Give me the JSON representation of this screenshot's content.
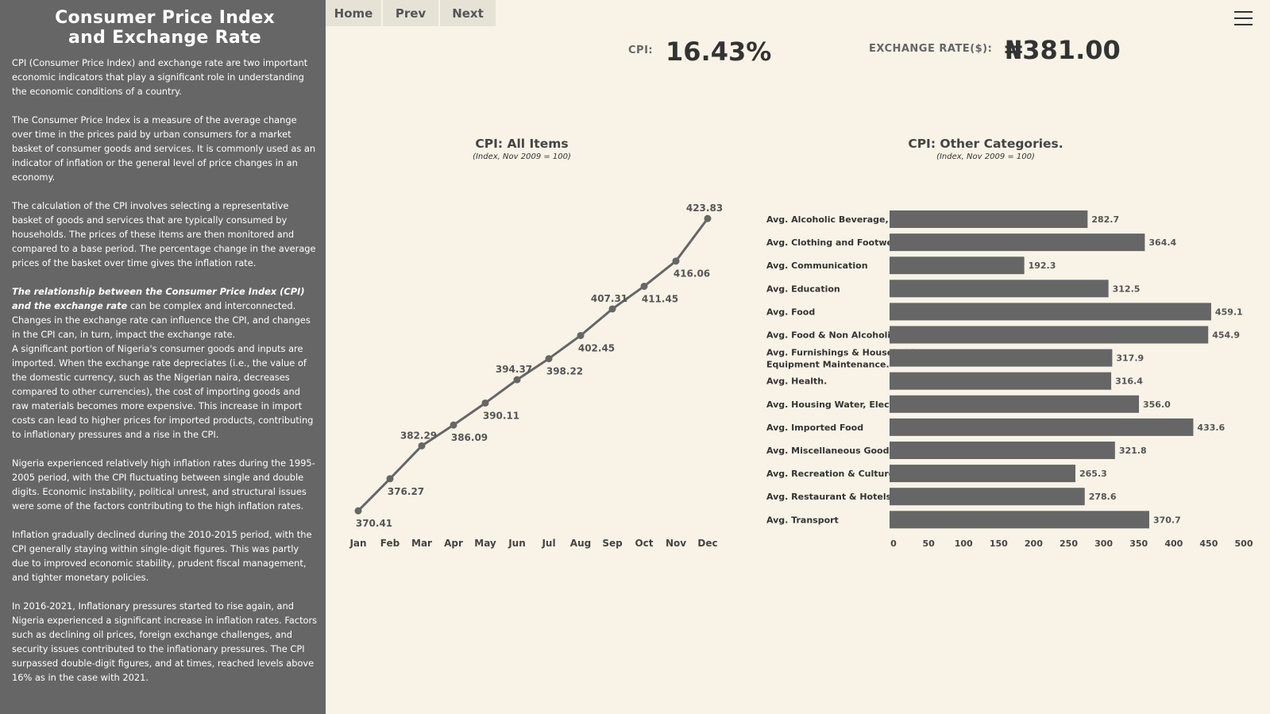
{
  "sidebar": {
    "title_line1": "Consumer Price Index",
    "title_line2": "and Exchange Rate",
    "p1": "CPI (Consumer Price Index) and exchange rate are two important economic indicators that play a significant role in understanding the economic conditions of a country.",
    "p2": "The Consumer Price Index is a measure of the average change over time in the prices paid by urban consumers for a market basket of consumer goods and services. It is commonly used as an indicator of inflation or the general level of price changes in an economy.",
    "p3": "The calculation of the CPI involves selecting a representative basket of goods and services that are typically consumed by households. The prices of these items are then monitored and compared to a base period. The percentage change in the average prices of the basket over time gives the inflation rate.",
    "p4_emph": "The relationship between the Consumer Price Index (CPI) and the exchange rate",
    "p4_rest": " can be complex and interconnected. Changes in the exchange rate can influence the CPI, and changes in the CPI can, in turn, impact the exchange rate.",
    "p5": "A significant portion of Nigeria's consumer goods and inputs are imported. When the exchange rate depreciates (i.e., the value of the domestic currency, such as the Nigerian naira, decreases compared to other currencies), the cost of importing goods and raw materials becomes more expensive. This increase in import costs can lead to higher prices for imported products, contributing to inflationary pressures and a rise in the CPI.",
    "p6": "Nigeria experienced relatively high inflation rates during the 1995-2005  period, with the CPI fluctuating between single and double digits. Economic instability, political unrest, and structural issues were some of the factors contributing to the high inflation rates.",
    "p7": "Inflation gradually declined during the 2010-2015 period, with the CPI generally staying within single-digit figures. This was partly due to improved economic stability, prudent fiscal management, and tighter monetary policies.",
    "p8": "In 2016-2021, Inflationary pressures started to rise again, and Nigeria experienced a significant increase in inflation rates. Factors such as declining oil prices, foreign exchange challenges, and security issues contributed to the inflationary pressures. The CPI surpassed double-digit figures, and at times, reached levels above 16% as in the case with 2021."
  },
  "nav": {
    "home": "Home",
    "prev": "Prev",
    "next": "Next"
  },
  "kpi": {
    "cpi_label": "CPI:",
    "cpi_value": "16.43%",
    "fx_label": "EXCHANGE RATE($):",
    "fx_value": "₦381.00"
  },
  "icons": {
    "menu": "hamburger-menu-icon"
  },
  "colors": {
    "sidebar": "#666666",
    "background": "#f8f3e6",
    "series": "#666666"
  },
  "chart_data": [
    {
      "type": "line",
      "title": "CPI: All Items",
      "subtitle": "(Index, Nov 2009 = 100)",
      "x": [
        "Jan",
        "Feb",
        "Mar",
        "Apr",
        "May",
        "Jun",
        "Jul",
        "Aug",
        "Sep",
        "Oct",
        "Nov",
        "Dec"
      ],
      "values": [
        370.41,
        376.27,
        382.29,
        386.09,
        390.11,
        394.37,
        398.22,
        402.45,
        407.31,
        411.45,
        416.06,
        423.83
      ],
      "labels": [
        "370.41",
        "376.27",
        "382.29",
        "386.09",
        "390.11",
        "394.37",
        "398.22",
        "402.45",
        "407.31",
        "411.45",
        "416.06",
        "423.83"
      ],
      "label_side": [
        "below",
        "below",
        "above",
        "below",
        "below",
        "above",
        "below",
        "below",
        "above",
        "below",
        "below",
        "above"
      ],
      "ylim": [
        370,
        424
      ],
      "grid": false
    },
    {
      "type": "bar",
      "orientation": "horizontal",
      "title": "CPI: Other Categories.",
      "subtitle": "(Index, Nov 2009 = 100)",
      "categories": [
        [
          "Avg. Alcoholic Beverage,  To.."
        ],
        [
          "Avg. Clothing and Footwear"
        ],
        [
          "Avg. Communication"
        ],
        [
          "Avg. Education"
        ],
        [
          "Avg. Food"
        ],
        [
          "Avg. Food &  Non Alcoholic B.."
        ],
        [
          "Avg. Furnishings & Household",
          "Equipment Maintenance."
        ],
        [
          "Avg. Health."
        ],
        [
          "Avg. Housing Water, Electric.."
        ],
        [
          "Avg. Imported Food"
        ],
        [
          "Avg. Miscellaneous Goods  &.."
        ],
        [
          "Avg. Recreation & Culture."
        ],
        [
          "Avg. Restaurant &  Hotels"
        ],
        [
          "Avg. Transport"
        ]
      ],
      "values": [
        282.7,
        364.4,
        192.3,
        312.5,
        459.1,
        454.9,
        317.9,
        316.4,
        356.0,
        433.6,
        321.8,
        265.3,
        278.6,
        370.7
      ],
      "labels": [
        "282.7",
        "364.4",
        "192.3",
        "312.5",
        "459.1",
        "454.9",
        "317.9",
        "316.4",
        "356.0",
        "433.6",
        "321.8",
        "265.3",
        "278.6",
        "370.7"
      ],
      "xticks": [
        0,
        50,
        100,
        150,
        200,
        250,
        300,
        350,
        400,
        450,
        500
      ],
      "xlim": [
        0,
        500
      ],
      "grid": false
    }
  ]
}
